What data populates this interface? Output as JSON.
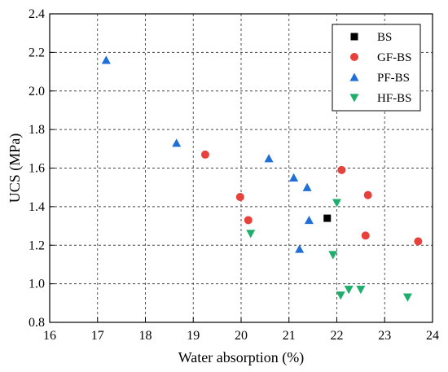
{
  "chart_data": {
    "type": "scatter",
    "title": "",
    "xlabel": "Water absorption (%)",
    "ylabel": "UCS (MPa)",
    "xlim": [
      16,
      24
    ],
    "ylim": [
      0.8,
      2.4
    ],
    "x_ticks": [
      "16",
      "17",
      "18",
      "19",
      "20",
      "21",
      "22",
      "23",
      "24"
    ],
    "y_ticks": [
      "0.8",
      "1.0",
      "1.2",
      "1.4",
      "1.6",
      "1.8",
      "2.0",
      "2.2",
      "2.4"
    ],
    "grid": true,
    "legend_position": "top-right",
    "series": [
      {
        "name": "BS",
        "marker": "square",
        "color": "#000000",
        "points": [
          [
            21.8,
            1.34
          ]
        ]
      },
      {
        "name": "GF-BS",
        "marker": "circle",
        "color": "#e8413c",
        "points": [
          [
            19.25,
            1.67
          ],
          [
            19.98,
            1.45
          ],
          [
            20.15,
            1.33
          ],
          [
            22.1,
            1.59
          ],
          [
            22.65,
            1.46
          ],
          [
            22.6,
            1.25
          ],
          [
            23.7,
            1.22
          ]
        ]
      },
      {
        "name": "PF-BS",
        "marker": "triangle-up",
        "color": "#1f6fd6",
        "points": [
          [
            17.18,
            2.16
          ],
          [
            18.65,
            1.73
          ],
          [
            20.58,
            1.65
          ],
          [
            21.1,
            1.55
          ],
          [
            21.38,
            1.5
          ],
          [
            21.42,
            1.33
          ],
          [
            21.22,
            1.18
          ]
        ]
      },
      {
        "name": "HF-BS",
        "marker": "triangle-down",
        "color": "#1fae6b",
        "points": [
          [
            22.0,
            1.42
          ],
          [
            20.2,
            1.26
          ],
          [
            21.92,
            1.15
          ],
          [
            22.08,
            0.94
          ],
          [
            22.25,
            0.97
          ],
          [
            22.5,
            0.97
          ],
          [
            23.48,
            0.93
          ]
        ]
      }
    ]
  }
}
